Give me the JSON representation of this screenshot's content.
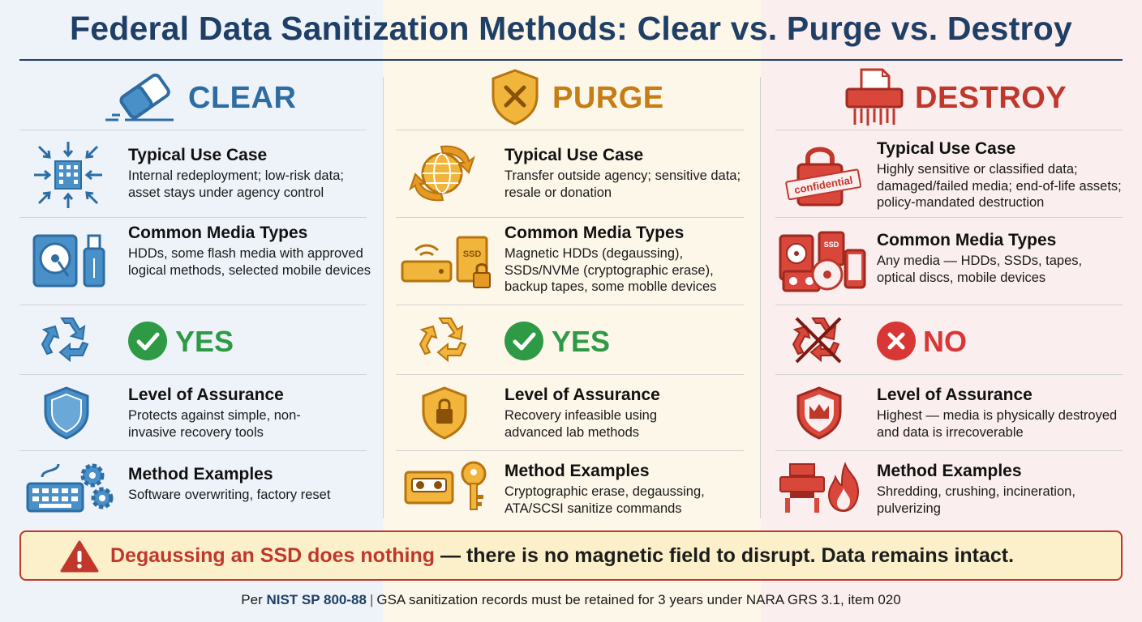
{
  "title": "Federal Data Sanitization Methods: Clear vs. Purge vs. Destroy",
  "colors": {
    "navy": "#1f3f66",
    "clear_blue": "#2d6da3",
    "purge_orange": "#d08a1e",
    "destroy_red": "#c0372b",
    "yes_green": "#2e9a45",
    "no_red": "#d93636"
  },
  "row_labels": {
    "use_case": "Typical Use Case",
    "media": "Common Media Types",
    "assurance": "Level of Assurance",
    "methods": "Method Examples"
  },
  "columns": {
    "clear": {
      "label": "CLEAR",
      "icon": "eraser-icon",
      "use_case": "Internal redeployment; low-risk data; asset stays under agency control",
      "media": "HDDs, some flash media with approved logical methods, selected mobile devices",
      "reuse": "YES",
      "assurance": "Protects against simple, non-invasive recovery tools",
      "methods": "Software overwriting, factory reset"
    },
    "purge": {
      "label": "PURGE",
      "icon": "shield-x-icon",
      "use_case": "Transfer outside agency; sensitive data; resale or donation",
      "media": "Magnetic HDDs (degaussing), SSDs/NVMe (cryptographic erase), backup tapes, some moblle devices",
      "reuse": "YES",
      "assurance": "Recovery infeasible using advanced lab methods",
      "methods": "Cryptographic erase, degaussing, ATA/SCSI sanitize commands"
    },
    "destroy": {
      "label": "DESTROY",
      "icon": "shredder-icon",
      "use_case": "Highly sensitive or classified data; damaged/failed media; end-of-life assets; policy-mandated destruction",
      "media": "Any media — HDDs, SSDs, tapes, optical discs, mobile devices",
      "reuse": "NO",
      "assurance": "Highest — media is physically destroyed and data is irrecoverable",
      "methods": "Shredding, crushing, incineration, pulverizing",
      "stamp_text": "confidential",
      "ssd_text": "SSD"
    }
  },
  "ssd_label": "SSD",
  "warning": {
    "highlight": "Degaussing an SSD does nothing",
    "rest": " — there is no magnetic field to disrupt. Data remains intact."
  },
  "footer": {
    "prefix": "Per ",
    "standard": "NIST SP 800-88",
    "separator": "|",
    "text": "GSA sanitization records must be retained for 3 years under NARA GRS 3.1, item 020"
  }
}
